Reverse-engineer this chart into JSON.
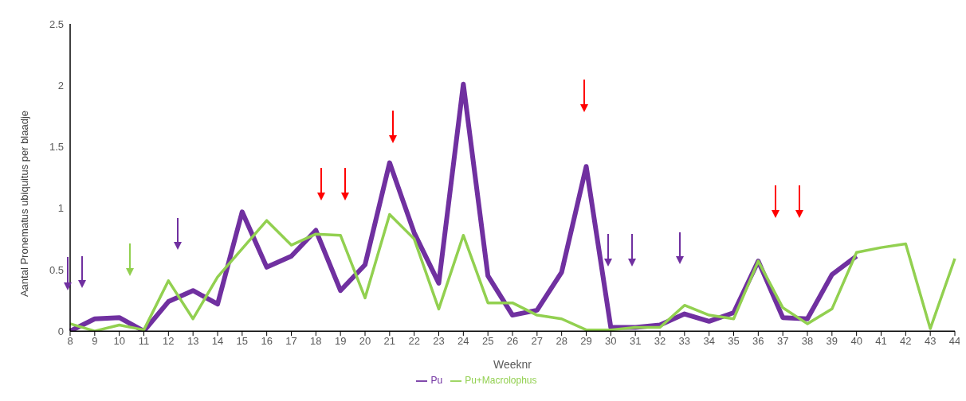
{
  "chart_data": {
    "type": "line",
    "xlabel": "Weeknr",
    "ylabel": "Aantal Pronematus ubiquitus per blaadje",
    "categories": [
      "8",
      "9",
      "10",
      "11",
      "12",
      "13",
      "14",
      "15",
      "16",
      "17",
      "18",
      "19",
      "20",
      "21",
      "22",
      "23",
      "24",
      "25",
      "26",
      "27",
      "28",
      "29",
      "30",
      "31",
      "32",
      "33",
      "34",
      "35",
      "36",
      "37",
      "38",
      "39",
      "40",
      "41",
      "42",
      "43",
      "44"
    ],
    "series": [
      {
        "name": "Pu",
        "color": "#7030a0",
        "values": [
          0,
          0.1,
          0.11,
          0,
          0.24,
          0.33,
          0.22,
          0.97,
          0.52,
          0.61,
          0.82,
          0.33,
          0.54,
          1.37,
          0.8,
          0.39,
          2.01,
          0.45,
          0.13,
          0.17,
          0.48,
          1.34,
          0.03,
          0.03,
          0.05,
          0.14,
          0.08,
          0.15,
          0.57,
          0.11,
          0.1,
          0.46,
          0.61,
          null,
          null,
          null,
          null
        ]
      },
      {
        "name": "Pu+Macrolophus",
        "color": "#92d050",
        "values": [
          0.06,
          0,
          0.05,
          0.01,
          0.41,
          0.1,
          0.44,
          0.67,
          0.9,
          0.7,
          0.79,
          0.78,
          0.27,
          0.95,
          0.75,
          0.18,
          0.78,
          0.23,
          0.23,
          0.13,
          0.1,
          0.01,
          0.01,
          0.03,
          0.03,
          0.21,
          0.13,
          0.1,
          0.57,
          0.19,
          0.06,
          0.18,
          0.64,
          0.68,
          0.71,
          0.02,
          0.59
        ]
      }
    ],
    "ylim": [
      0,
      2.5
    ],
    "yticks": [
      0,
      0.5,
      1,
      1.5,
      2,
      2.5
    ],
    "grid": false,
    "legend": "bottom",
    "marker": "none",
    "line_style": "solid"
  }
}
